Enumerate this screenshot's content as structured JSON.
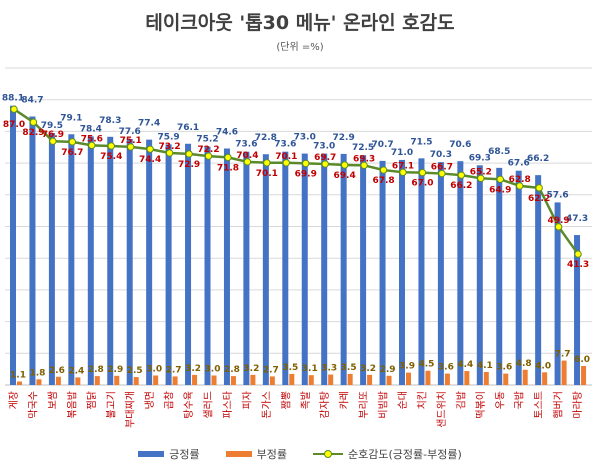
{
  "chart_data": {
    "type": "bar",
    "title": "테이크아웃 '톱30 메뉴' 온라인 호감도",
    "subtitle": "(단위 =%)",
    "ylim": [
      0,
      100
    ],
    "grid": true,
    "legend_position": "bottom",
    "categories": [
      "게장",
      "막국수",
      "보쌈",
      "볶음밥",
      "찜닭",
      "불고기",
      "부대찌개",
      "냉면",
      "곱창",
      "탕수육",
      "샐러드",
      "파스타",
      "피자",
      "돈가스",
      "짬뽕",
      "족발",
      "감자탕",
      "카레",
      "부리또",
      "비빔밥",
      "순대",
      "치킨",
      "샌드위치",
      "김밥",
      "떡볶이",
      "우동",
      "국밥",
      "토스트",
      "햄버거",
      "마라탕"
    ],
    "series": [
      {
        "name": "긍정률",
        "type": "bar",
        "color": "#4472c4",
        "values": [
          88.1,
          84.7,
          79.5,
          79.1,
          78.4,
          78.3,
          77.6,
          77.4,
          75.9,
          76.1,
          75.2,
          74.6,
          73.6,
          72.8,
          73.6,
          73.0,
          73.0,
          72.9,
          72.5,
          70.7,
          71.0,
          71.5,
          70.3,
          70.6,
          69.3,
          68.5,
          67.6,
          66.2,
          57.6,
          47.3
        ]
      },
      {
        "name": "부정률",
        "type": "bar",
        "color": "#ed7d31",
        "values": [
          1.1,
          1.8,
          2.6,
          2.4,
          2.8,
          2.9,
          2.5,
          3.0,
          2.7,
          3.2,
          3.0,
          2.8,
          3.2,
          2.7,
          3.5,
          3.1,
          3.3,
          3.5,
          3.2,
          2.9,
          3.9,
          4.5,
          3.6,
          4.4,
          4.1,
          3.6,
          4.8,
          4.0,
          7.7,
          6.0
        ]
      },
      {
        "name": "순호감도(긍정률-부정률)",
        "type": "line",
        "color": "#5b8a2a",
        "marker_color": "#ffff00",
        "values": [
          87.0,
          82.9,
          76.9,
          76.7,
          75.6,
          75.4,
          75.1,
          74.4,
          73.2,
          72.9,
          72.2,
          71.8,
          70.4,
          70.1,
          70.1,
          69.9,
          69.7,
          69.4,
          69.3,
          67.8,
          67.1,
          67.0,
          66.7,
          66.2,
          65.2,
          64.9,
          62.8,
          62.2,
          49.9,
          41.3
        ]
      }
    ],
    "label_colors": {
      "positive": "#2f5597",
      "negative": "#7f6000",
      "net": "#c00000",
      "category": "#c00000"
    }
  }
}
